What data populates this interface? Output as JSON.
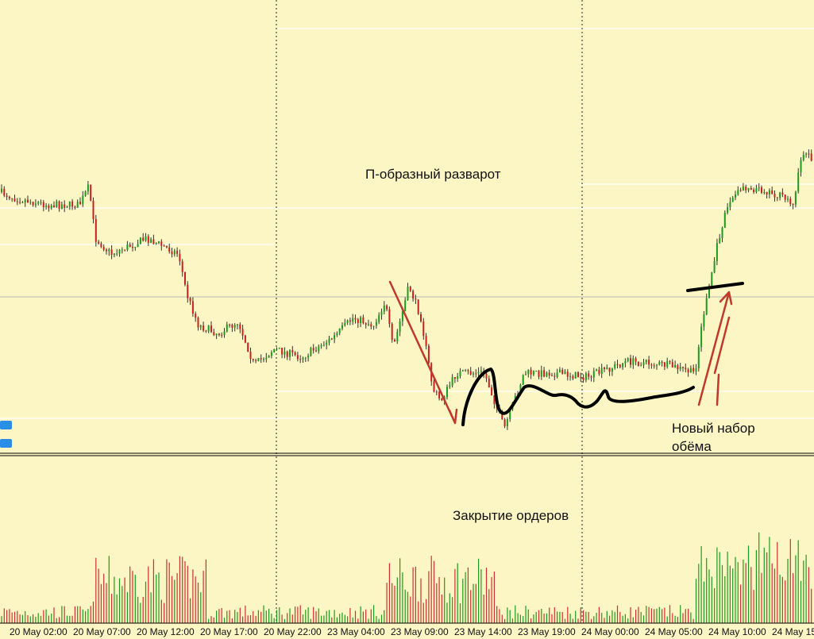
{
  "annotations": {
    "reversal": "П-образный разварот",
    "closing": "Закрытие ордеров",
    "new_volume_1": "Новый набор",
    "new_volume_2": "обёма"
  },
  "x_axis": {
    "labels": [
      "20 May 02:00",
      "20 May 07:00",
      "20 May 12:00",
      "20 May 17:00",
      "20 May 22:00",
      "23 May 04:00",
      "23 May 09:00",
      "23 May 14:00",
      "23 May 19:00",
      "24 May 00:00",
      "24 May 05:00",
      "24 May 10:00",
      "24 May 15"
    ]
  }
}
